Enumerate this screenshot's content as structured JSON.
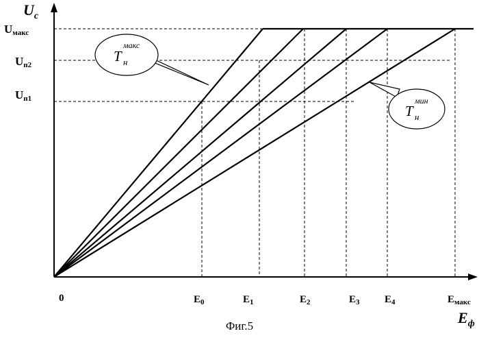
{
  "axes": {
    "y_title": {
      "main": "U",
      "sub": "c"
    },
    "x_title": {
      "main": "E",
      "sub": "ф"
    },
    "origin": "0"
  },
  "y_labels": [
    {
      "main": "U",
      "sub": "макс"
    },
    {
      "main": "U",
      "sub": "п2"
    },
    {
      "main": "U",
      "sub": "п1"
    }
  ],
  "x_labels": [
    {
      "main": "E",
      "sub": "0"
    },
    {
      "main": "E",
      "sub": "1"
    },
    {
      "main": "E",
      "sub": "2"
    },
    {
      "main": "E",
      "sub": "3"
    },
    {
      "main": "E",
      "sub": "4"
    },
    {
      "main": "E",
      "sub": "макс"
    }
  ],
  "callouts": {
    "t_max": {
      "main": "T",
      "sub": "н",
      "sup": "макс"
    },
    "t_min": {
      "main": "T",
      "sub": "н",
      "sup": "мин"
    }
  },
  "caption": "Фиг.5"
}
